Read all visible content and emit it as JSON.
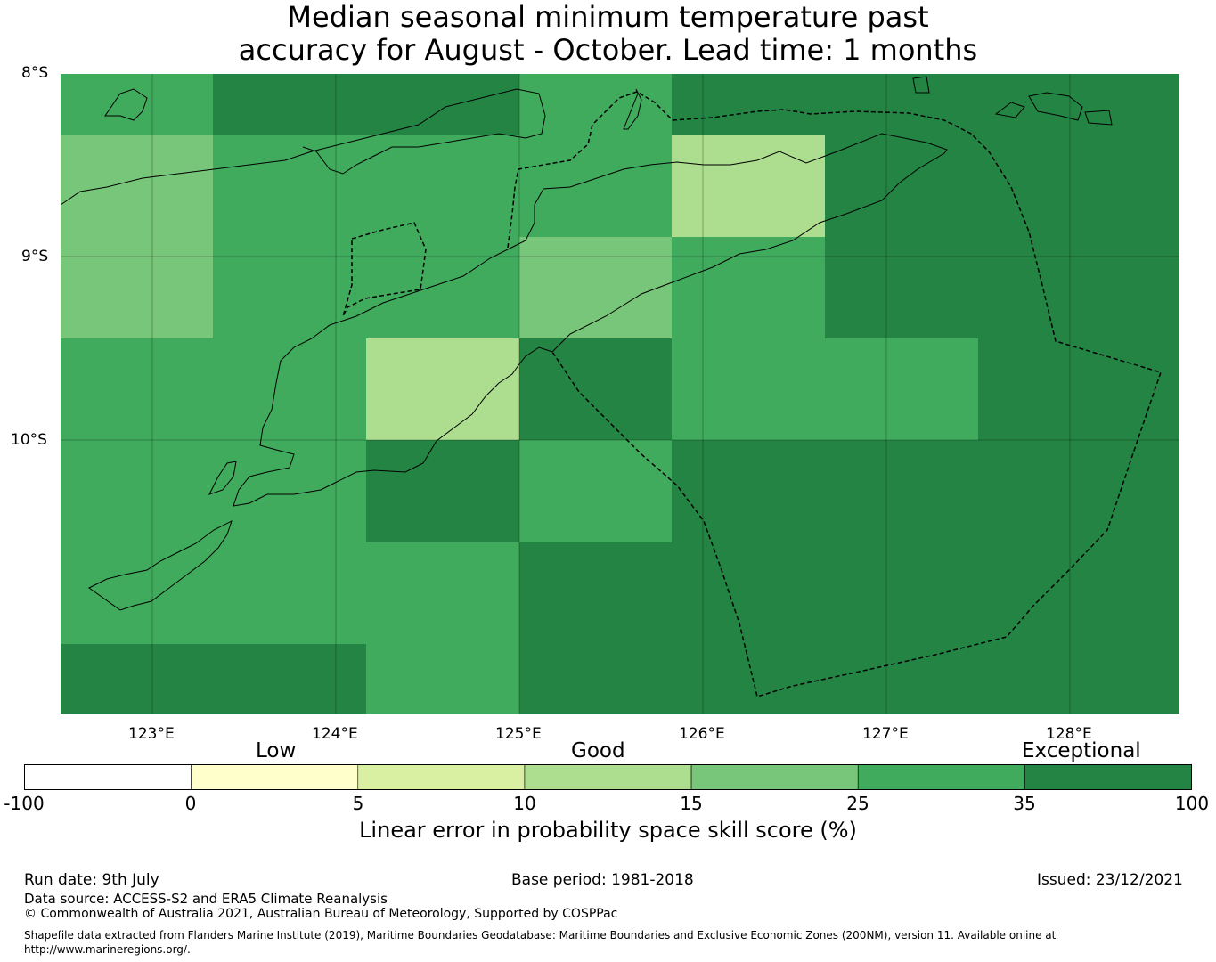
{
  "title": {
    "line1": "Median seasonal minimum temperature past",
    "line2": "accuracy for August - October. Lead time: 1 months"
  },
  "map": {
    "latitude_labels": [
      "8°S",
      "9°S",
      "10°S"
    ],
    "longitude_labels": [
      "123°E",
      "124°E",
      "125°E",
      "126°E",
      "127°E",
      "128°E"
    ],
    "grid_values": [
      [
        30,
        40,
        40,
        30,
        40,
        40,
        40
      ],
      [
        20,
        30,
        30,
        30,
        12,
        40,
        40
      ],
      [
        20,
        30,
        30,
        20,
        30,
        40,
        40
      ],
      [
        30,
        30,
        12,
        40,
        30,
        30,
        40
      ],
      [
        30,
        30,
        40,
        30,
        40,
        40,
        40
      ],
      [
        30,
        30,
        30,
        40,
        40,
        40,
        40
      ],
      [
        40,
        40,
        30,
        40,
        40,
        40,
        40
      ]
    ]
  },
  "colorbar": {
    "category_labels": {
      "low": "Low",
      "good": "Good",
      "exceptional": "Exceptional"
    },
    "tick_labels": [
      "-100",
      "0",
      "5",
      "10",
      "15",
      "25",
      "35",
      "100"
    ],
    "bins": [
      {
        "from": -100,
        "to": 0,
        "color": "#ffffff"
      },
      {
        "from": 0,
        "to": 5,
        "color": "#ffffcc"
      },
      {
        "from": 5,
        "to": 10,
        "color": "#d9f0a3"
      },
      {
        "from": 10,
        "to": 15,
        "color": "#addd8e"
      },
      {
        "from": 15,
        "to": 25,
        "color": "#78c679"
      },
      {
        "from": 25,
        "to": 35,
        "color": "#41ab5d"
      },
      {
        "from": 35,
        "to": 100,
        "color": "#238443"
      }
    ],
    "axis_label": "Linear error in probability space skill score (%)"
  },
  "footer": {
    "run_date": "Run date: 9th July",
    "base_period": "Base period: 1981-2018",
    "issued": "Issued: 23/12/2021",
    "data_source": "Data source: ACCESS-S2 and ERA5 Climate Reanalysis",
    "copyright": "© Commonwealth of Australia 2021, Australian Bureau of Meteorology, Supported by COSPPac",
    "shapefile_line1": "Shapefile data extracted from Flanders Marine Institute (2019), Maritime Boundaries Geodatabase: Maritime Boundaries and Exclusive Economic Zones (200NM), version 11. Available online at",
    "shapefile_line2": "http://www.marineregions.org/."
  }
}
